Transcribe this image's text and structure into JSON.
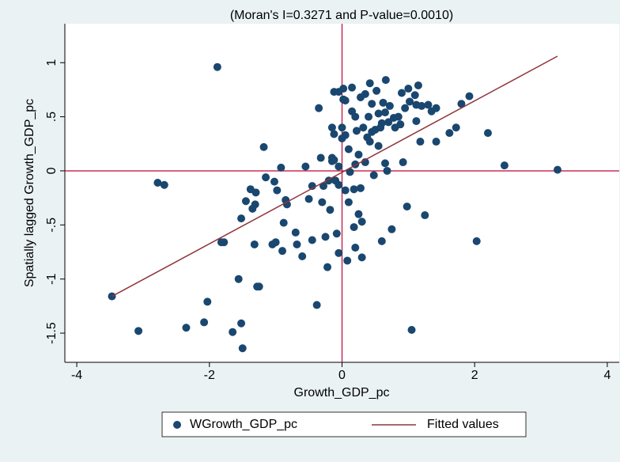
{
  "chart_data": {
    "type": "scatter",
    "title": "(Moran's I=0.3271 and P-value=0.0010)",
    "x_label": "Growth_GDP_pc",
    "y_label": "Spatially lagged Growth_GDP_pc",
    "xlim": [
      -4.18,
      4.18
    ],
    "ylim": [
      -1.77,
      1.36
    ],
    "xticks": [
      -4,
      -2,
      0,
      2,
      4
    ],
    "yticks": [
      {
        "value": -1.5,
        "label": "-1.5"
      },
      -1,
      {
        "value": -0.5,
        "label": "-.5"
      },
      0,
      {
        "value": 0.5,
        "label": ".5"
      },
      1
    ],
    "xline": 0,
    "yline": 0,
    "refline_color": "#c10534",
    "grid": false,
    "legend": "bottom",
    "series": [
      {
        "name": "WGrowth_GDP_pc",
        "color": "#1a476f",
        "type": "scatter",
        "x": [
          -3.47,
          -3.07,
          -2.78,
          -2.68,
          -2.35,
          -2.08,
          -2.03,
          -1.88,
          -1.82,
          -1.78,
          -1.65,
          -1.56,
          -1.52,
          -1.5,
          -1.52,
          -1.45,
          -1.38,
          -1.35,
          -1.32,
          -1.3,
          -1.28,
          -1.25,
          -1.31,
          -1.18,
          -1.15,
          -1.05,
          -1.0,
          -1.02,
          -0.98,
          -0.92,
          -0.9,
          -0.88,
          -0.85,
          -0.83,
          -0.7,
          -0.68,
          -0.6,
          -0.55,
          -0.5,
          -0.45,
          -0.45,
          -0.38,
          -0.35,
          -0.32,
          -0.3,
          -0.28,
          -0.25,
          -0.22,
          -0.2,
          -0.18,
          -0.15,
          -0.15,
          -0.12,
          -0.1,
          -0.08,
          -0.05,
          -0.05,
          -0.05,
          0.0,
          -0.12,
          -0.15,
          -0.12,
          -0.05,
          0.02,
          0.0,
          0.02,
          0.05,
          0.05,
          0.05,
          0.08,
          0.1,
          0.1,
          0.12,
          0.15,
          0.15,
          0.18,
          0.18,
          0.2,
          0.2,
          0.2,
          0.22,
          0.25,
          0.25,
          0.28,
          0.28,
          0.3,
          0.3,
          0.32,
          0.35,
          0.35,
          0.38,
          0.4,
          0.42,
          0.42,
          0.45,
          0.45,
          0.48,
          0.5,
          0.52,
          0.55,
          0.55,
          0.58,
          0.6,
          0.6,
          0.62,
          0.65,
          0.65,
          0.66,
          0.68,
          0.7,
          0.72,
          0.75,
          0.78,
          0.8,
          0.85,
          0.88,
          0.9,
          0.92,
          0.95,
          0.98,
          1.0,
          1.02,
          1.05,
          1.1,
          1.12,
          1.12,
          1.15,
          1.18,
          1.2,
          1.25,
          1.3,
          1.35,
          1.42,
          1.42,
          1.62,
          1.72,
          1.8,
          1.92,
          2.03,
          2.2,
          2.45,
          3.25
        ],
        "values": [
          -1.16,
          -1.48,
          -0.11,
          -0.13,
          -1.45,
          -1.4,
          -1.21,
          0.96,
          -0.66,
          -0.66,
          -1.49,
          -1.0,
          -1.41,
          -1.64,
          -0.44,
          -0.28,
          -0.17,
          -0.35,
          -0.68,
          -0.2,
          -1.07,
          -1.07,
          -0.31,
          0.22,
          -0.06,
          -0.68,
          -0.66,
          -0.1,
          -0.18,
          0.03,
          -0.74,
          -0.48,
          -0.27,
          -0.31,
          -0.57,
          -0.68,
          -0.79,
          0.04,
          -0.26,
          -0.14,
          -0.64,
          -1.24,
          0.58,
          0.12,
          -0.29,
          -0.14,
          -0.61,
          -0.89,
          -0.09,
          -0.36,
          0.09,
          0.12,
          0.1,
          -0.09,
          -0.58,
          0.04,
          -0.76,
          -0.13,
          0.4,
          0.34,
          0.4,
          0.73,
          0.73,
          0.76,
          0.3,
          0.66,
          0.33,
          0.65,
          -0.18,
          -0.83,
          -0.29,
          0.2,
          -0.01,
          0.77,
          0.55,
          -0.17,
          -0.52,
          -0.71,
          0.06,
          0.5,
          0.37,
          -0.4,
          0.15,
          -0.16,
          0.68,
          -0.47,
          -0.8,
          0.4,
          0.71,
          0.08,
          0.31,
          0.5,
          0.27,
          0.81,
          0.62,
          0.36,
          -0.04,
          0.38,
          0.74,
          0.53,
          0.23,
          0.4,
          -0.65,
          0.44,
          0.63,
          0.54,
          0.07,
          0.84,
          0.0,
          0.45,
          0.6,
          -0.54,
          0.49,
          0.4,
          0.5,
          0.43,
          0.72,
          0.08,
          0.58,
          -0.33,
          0.76,
          0.64,
          -1.47,
          0.7,
          0.46,
          0.61,
          0.79,
          0.27,
          0.6,
          -0.41,
          0.61,
          0.55,
          0.58,
          0.27,
          0.35,
          0.4,
          0.62,
          0.69,
          -0.65,
          0.35,
          0.05,
          0.01
        ]
      },
      {
        "name": "Fitted values",
        "color": "#90353b",
        "type": "line",
        "x": [
          -3.47,
          3.25
        ],
        "values": [
          -1.16,
          1.06
        ]
      }
    ]
  }
}
